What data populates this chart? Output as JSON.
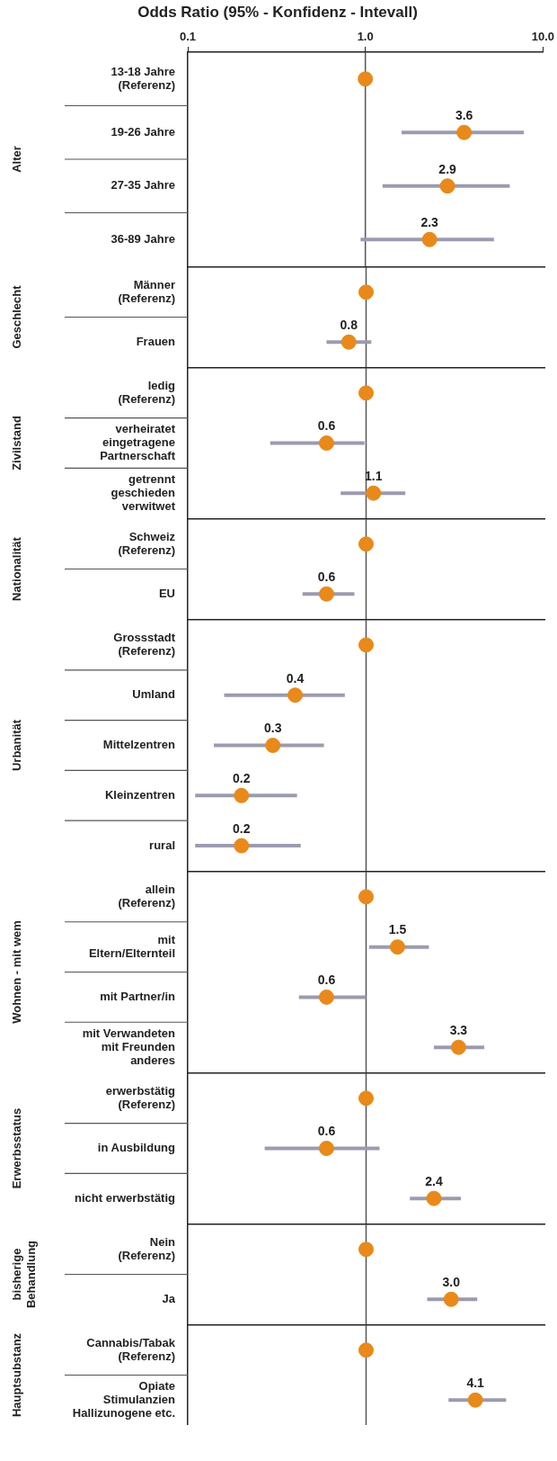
{
  "chart_data": [
    {
      "type": "scatter",
      "orientation": "horizontal",
      "title": "Odds Ratio (95% - Konfidenz - Intevall)",
      "ylabel": "Alter",
      "categories": [
        "13-18 Jahre\n(Referenz)",
        "19-26 Jahre",
        "27-35 Jahre",
        "36-89 Jahre"
      ],
      "values": [
        1,
        3.6,
        2.9,
        2.3
      ],
      "errors": [
        null,
        [
          1.6,
          7.8
        ],
        [
          1.25,
          6.5
        ],
        [
          0.94,
          5.3
        ]
      ],
      "value_labels": [
        null,
        "3.6",
        "2.9",
        "2.3"
      ],
      "color": "#e8891a",
      "marker": "circle",
      "log": "x",
      "xlim": [
        0.1,
        10
      ],
      "xticks": [
        {
          "value": 0.1,
          "label": "0.1"
        },
        {
          "value": 1,
          "label": "1.0"
        },
        {
          "value": 10,
          "label": "10.0"
        }
      ],
      "ref_lines": [
        {
          "axis": "x",
          "value": 1,
          "color": "#555555"
        }
      ]
    },
    {
      "type": "scatter",
      "orientation": "horizontal",
      "ylabel": "Geschlecht",
      "categories": [
        "Männer\n(Referenz)",
        "Frauen"
      ],
      "values": [
        1,
        0.8
      ],
      "errors": [
        null,
        [
          0.6,
          1.07
        ]
      ],
      "value_labels": [
        null,
        "0.8"
      ],
      "color": "#e8891a",
      "marker": "circle",
      "log": "x",
      "xlim": [
        0.1,
        10
      ],
      "tick_labels": "y",
      "ref_lines": [
        {
          "axis": "x",
          "value": 1,
          "color": "#555555"
        }
      ]
    },
    {
      "type": "scatter",
      "orientation": "horizontal",
      "ylabel": "Zivilstand",
      "categories": [
        "ledig\n(Referenz)",
        "verheiratet\neingetragene\nPartnerschaft",
        "getrennt\ngeschieden\nverwitwet"
      ],
      "values": [
        1,
        0.6,
        1.1
      ],
      "errors": [
        null,
        [
          0.29,
          0.98
        ],
        [
          0.72,
          1.66
        ]
      ],
      "value_labels": [
        null,
        "0.6",
        "1.1"
      ],
      "color": "#e8891a",
      "marker": "circle",
      "log": "x",
      "xlim": [
        0.1,
        10
      ],
      "tick_labels": "y",
      "ref_lines": [
        {
          "axis": "x",
          "value": 1,
          "color": "#555555"
        }
      ]
    },
    {
      "type": "scatter",
      "orientation": "horizontal",
      "ylabel": "Nationalität",
      "categories": [
        "Schweiz\n(Referenz)",
        "EU"
      ],
      "values": [
        1,
        0.6
      ],
      "errors": [
        null,
        [
          0.44,
          0.86
        ]
      ],
      "value_labels": [
        null,
        "0.6"
      ],
      "color": "#e8891a",
      "marker": "circle",
      "log": "x",
      "xlim": [
        0.1,
        10
      ],
      "tick_labels": "y",
      "ref_lines": [
        {
          "axis": "x",
          "value": 1,
          "color": "#555555"
        }
      ]
    },
    {
      "type": "scatter",
      "orientation": "horizontal",
      "ylabel": "Urbanität",
      "categories": [
        "Grossstadt\n(Referenz)",
        "Umland",
        "Mittelzentren",
        "Kleinzentren",
        "rural"
      ],
      "values": [
        1,
        0.4,
        0.3,
        0.2,
        0.2
      ],
      "errors": [
        null,
        [
          0.16,
          0.76
        ],
        [
          0.14,
          0.58
        ],
        [
          0.11,
          0.41
        ],
        [
          0.11,
          0.43
        ]
      ],
      "value_labels": [
        null,
        "0.4",
        "0.3",
        "0.2",
        "0.2"
      ],
      "color": "#e8891a",
      "marker": "circle",
      "log": "x",
      "xlim": [
        0.1,
        10
      ],
      "tick_labels": "y",
      "ref_lines": [
        {
          "axis": "x",
          "value": 1,
          "color": "#555555"
        }
      ]
    },
    {
      "type": "scatter",
      "orientation": "horizontal",
      "ylabel": "Wohnen - mit wem",
      "categories": [
        "allein\n(Referenz)",
        "mit\nEltern/Elternteil",
        "mit Partner/in",
        "mit Verwandeten\nmit Freunden\nanderes"
      ],
      "values": [
        1,
        1.5,
        0.6,
        3.3
      ],
      "errors": [
        null,
        [
          1.04,
          2.25
        ],
        [
          0.42,
          1.0
        ],
        [
          2.4,
          4.6
        ]
      ],
      "value_labels": [
        null,
        "1.5",
        "0.6",
        "3.3"
      ],
      "color": "#e8891a",
      "marker": "circle",
      "log": "x",
      "xlim": [
        0.1,
        10
      ],
      "tick_labels": "y",
      "ref_lines": [
        {
          "axis": "x",
          "value": 1,
          "color": "#555555"
        }
      ]
    },
    {
      "type": "scatter",
      "orientation": "horizontal",
      "ylabel": "Erwerbsstatus",
      "categories": [
        "erwerbstätig\n(Referenz)",
        "in Ausbildung",
        "nicht erwerbstätig"
      ],
      "values": [
        1,
        0.6,
        2.4
      ],
      "errors": [
        null,
        [
          0.27,
          1.19
        ],
        [
          1.76,
          3.4
        ]
      ],
      "value_labels": [
        null,
        "0.6",
        "2.4"
      ],
      "color": "#e8891a",
      "marker": "circle",
      "log": "x",
      "xlim": [
        0.1,
        10
      ],
      "tick_labels": "y",
      "ref_lines": [
        {
          "axis": "x",
          "value": 1,
          "color": "#555555"
        }
      ]
    },
    {
      "type": "scatter",
      "orientation": "horizontal",
      "ylabel": "bisherige\nBehandlung",
      "categories": [
        "Nein\n(Referenz)",
        "Ja"
      ],
      "values": [
        1,
        3.0
      ],
      "errors": [
        null,
        [
          2.2,
          4.2
        ]
      ],
      "value_labels": [
        null,
        "3.0"
      ],
      "color": "#e8891a",
      "marker": "circle",
      "log": "x",
      "xlim": [
        0.1,
        10
      ],
      "tick_labels": "y",
      "ref_lines": [
        {
          "axis": "x",
          "value": 1,
          "color": "#555555"
        }
      ]
    },
    {
      "type": "scatter",
      "orientation": "horizontal",
      "ylabel": "Hauptsubstanz",
      "categories": [
        "Cannabis/Tabak\n(Referenz)",
        "Opiate\nStimulanzien\nHallizunogene etc."
      ],
      "values": [
        1,
        4.1
      ],
      "errors": [
        null,
        [
          2.9,
          6.1
        ]
      ],
      "value_labels": [
        null,
        "4.1"
      ],
      "color": "#e8891a",
      "marker": "circle",
      "log": "x",
      "xlim": [
        0.1,
        10
      ],
      "tick_labels": "y",
      "ref_lines": [
        {
          "axis": "x",
          "value": 1,
          "color": "#555555"
        }
      ]
    }
  ]
}
